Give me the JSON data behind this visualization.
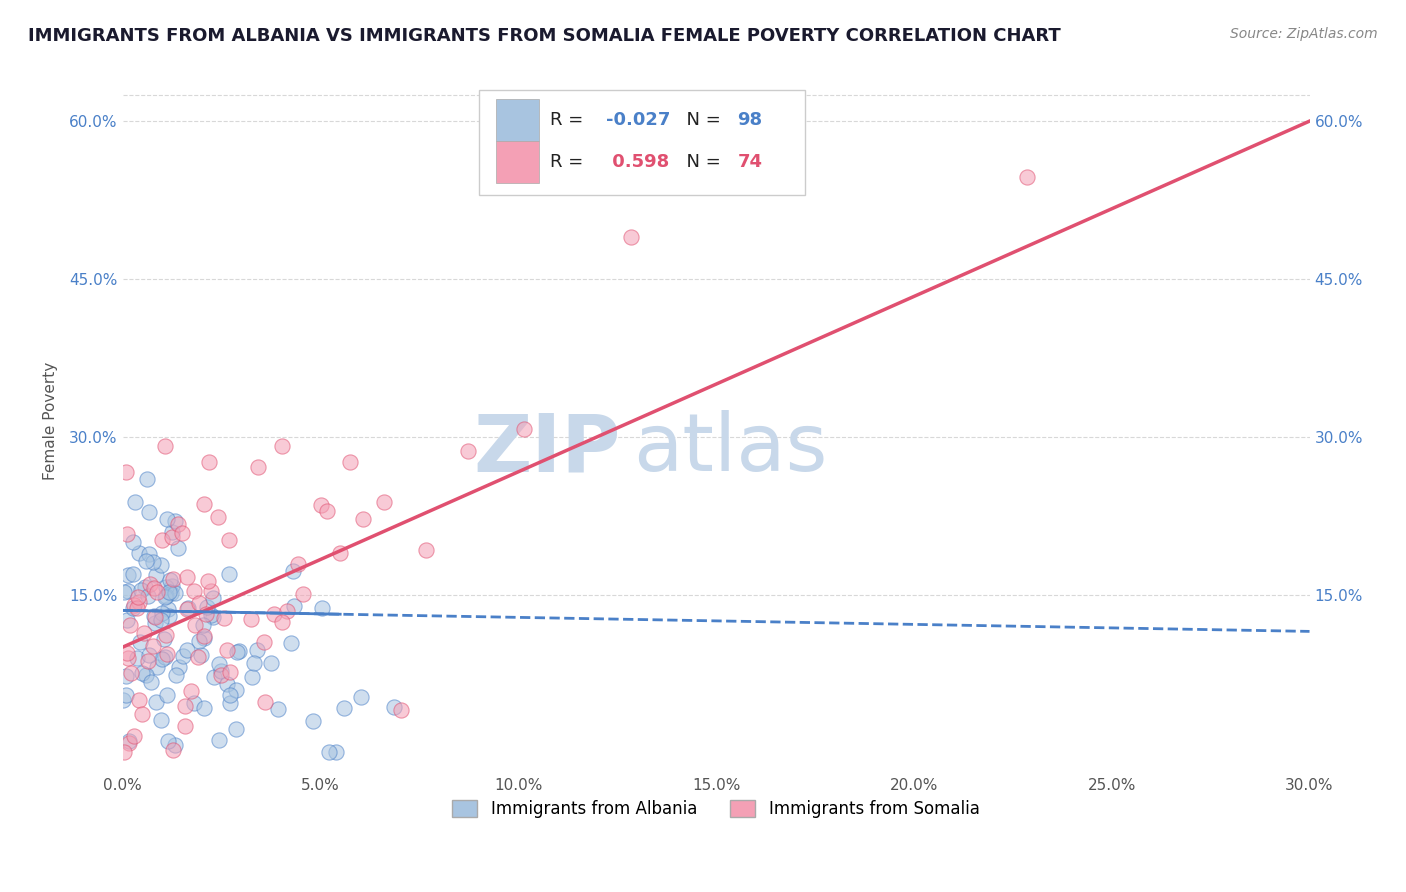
{
  "title": "IMMIGRANTS FROM ALBANIA VS IMMIGRANTS FROM SOMALIA FEMALE POVERTY CORRELATION CHART",
  "source": "Source: ZipAtlas.com",
  "ylabel": "Female Poverty",
  "xlim": [
    0.0,
    0.3
  ],
  "ylim": [
    -0.02,
    0.65
  ],
  "xtick_vals": [
    0.0,
    0.05,
    0.1,
    0.15,
    0.2,
    0.25,
    0.3
  ],
  "ytick_vals": [
    0.15,
    0.3,
    0.45,
    0.6
  ],
  "ytick_labels": [
    "15.0%",
    "30.0%",
    "45.0%",
    "60.0%"
  ],
  "albania_color": "#a8c4e0",
  "somalia_color": "#f4a0b5",
  "albania_line_color": "#4a80c8",
  "somalia_line_color": "#e05070",
  "albania_R": -0.027,
  "albania_N": 98,
  "somalia_R": 0.598,
  "somalia_N": 74,
  "watermark_zip": "ZIP",
  "watermark_atlas": "atlas",
  "watermark_color": "#c8d8ea",
  "legend_albania": "Immigrants from Albania",
  "legend_somalia": "Immigrants from Somalia",
  "background_color": "#ffffff",
  "grid_color": "#d8d8d8",
  "title_color": "#1a1a2e",
  "source_color": "#888888"
}
